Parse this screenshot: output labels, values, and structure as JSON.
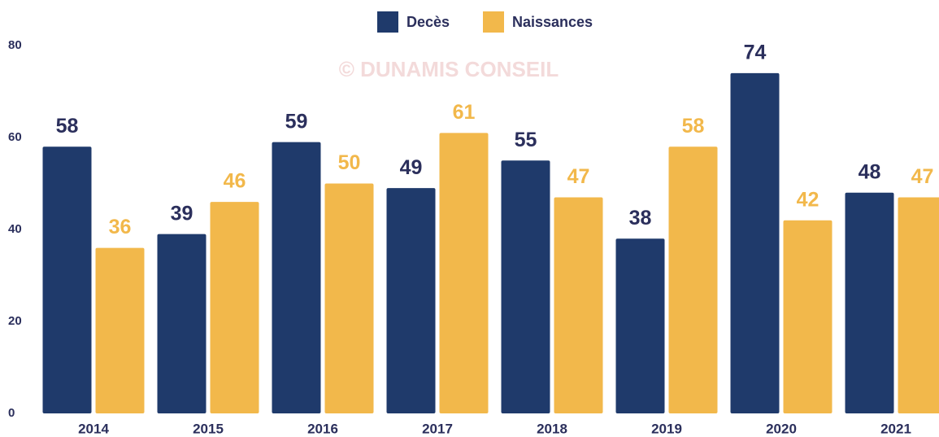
{
  "chart_data": {
    "type": "bar",
    "annotation": "© DUNAMIS CONSEIL",
    "categories": [
      "2014",
      "2015",
      "2016",
      "2017",
      "2018",
      "2019",
      "2020",
      "2021"
    ],
    "series": [
      {
        "name": "Decès",
        "color": "#1f3a6b",
        "values": [
          58,
          39,
          59,
          49,
          55,
          38,
          74,
          48
        ]
      },
      {
        "name": "Naissances",
        "color": "#f2b84b",
        "values": [
          36,
          46,
          50,
          61,
          47,
          58,
          42,
          47
        ]
      }
    ],
    "ylim": [
      0,
      80
    ],
    "yticks": [
      0,
      20,
      40,
      60,
      80
    ],
    "legend": "top"
  }
}
